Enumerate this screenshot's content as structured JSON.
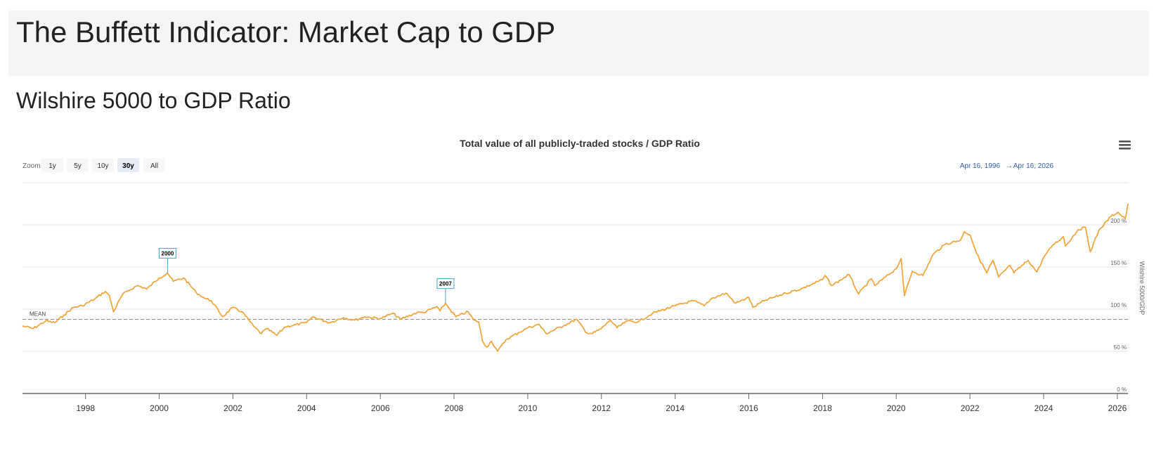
{
  "page": {
    "title": "The Buffett Indicator: Market Cap to GDP",
    "section_title": "Wilshire 5000 to GDP Ratio"
  },
  "chart_data": {
    "type": "line",
    "title": "Total value of all publicly-traded stocks / GDP Ratio",
    "ylabel": "Wilshire 5000/GDP",
    "xlabel": "",
    "ylim": [
      0,
      250
    ],
    "xlim": [
      "1996-04-16",
      "2026-04-16"
    ],
    "grid": true,
    "series_color": "#f0a742",
    "mean_line_color": "#888888",
    "flag_border_color": "#4ca3dd",
    "accent_text_color": "#335cad",
    "y_ticks": [
      0,
      50,
      100,
      150,
      200
    ],
    "y_tick_labels": [
      "0 %",
      "50 %",
      "100 %",
      "150 %",
      "200 %"
    ],
    "x_ticks": [
      "1998",
      "2000",
      "2002",
      "2004",
      "2006",
      "2008",
      "2010",
      "2012",
      "2014",
      "2016",
      "2018",
      "2020",
      "2022",
      "2024",
      "2026"
    ],
    "mean": {
      "label": "MEAN",
      "value": 88
    },
    "flags": [
      {
        "label": "2000",
        "x": "2000-03-24",
        "y": 143
      },
      {
        "label": "2007",
        "x": "2007-10-09",
        "y": 107
      }
    ],
    "range_selector": {
      "zoom_label": "Zoom",
      "buttons": [
        "1y",
        "5y",
        "10y",
        "30y",
        "All"
      ],
      "selected": "30y"
    },
    "range_display": {
      "from": "Apr 16, 1996",
      "arrow": "→",
      "to": "Apr 16, 2026"
    },
    "menu_icon": "hamburger-menu-icon",
    "series": [
      {
        "values": [
          [
            "1996-04-16",
            80
          ],
          [
            "1996-08-01",
            77
          ],
          [
            "1996-12-01",
            86
          ],
          [
            "1997-03-01",
            84
          ],
          [
            "1997-06-01",
            93
          ],
          [
            "1997-09-01",
            102
          ],
          [
            "1997-12-01",
            104
          ],
          [
            "1998-04-01",
            112
          ],
          [
            "1998-07-15",
            121
          ],
          [
            "1998-08-25",
            116
          ],
          [
            "1998-10-05",
            97
          ],
          [
            "1998-12-31",
            117
          ],
          [
            "1999-03-01",
            122
          ],
          [
            "1999-06-01",
            128
          ],
          [
            "1999-09-01",
            124
          ],
          [
            "1999-12-31",
            137
          ],
          [
            "2000-03-24",
            143
          ],
          [
            "2000-05-20",
            133
          ],
          [
            "2000-09-01",
            137
          ],
          [
            "2000-12-31",
            120
          ],
          [
            "2001-03-25",
            113
          ],
          [
            "2001-06-01",
            110
          ],
          [
            "2001-09-21",
            91
          ],
          [
            "2001-12-31",
            102
          ],
          [
            "2002-04-01",
            97
          ],
          [
            "2002-07-23",
            80
          ],
          [
            "2002-10-09",
            71
          ],
          [
            "2002-12-01",
            77
          ],
          [
            "2003-03-11",
            69
          ],
          [
            "2003-06-01",
            79
          ],
          [
            "2003-12-31",
            84
          ],
          [
            "2004-03-01",
            91
          ],
          [
            "2004-08-13",
            84
          ],
          [
            "2004-12-31",
            90
          ],
          [
            "2005-04-20",
            87
          ],
          [
            "2005-08-01",
            91
          ],
          [
            "2005-12-31",
            89
          ],
          [
            "2006-05-08",
            95
          ],
          [
            "2006-07-18",
            88
          ],
          [
            "2006-12-31",
            96
          ],
          [
            "2007-03-05",
            96
          ],
          [
            "2007-07-16",
            103
          ],
          [
            "2007-08-16",
            98
          ],
          [
            "2007-10-09",
            107
          ],
          [
            "2007-11-26",
            99
          ],
          [
            "2008-01-22",
            91
          ],
          [
            "2008-05-19",
            97
          ],
          [
            "2008-07-15",
            87
          ],
          [
            "2008-09-01",
            85
          ],
          [
            "2008-10-10",
            62
          ],
          [
            "2008-11-20",
            55
          ],
          [
            "2009-01-06",
            62
          ],
          [
            "2009-03-09",
            50
          ],
          [
            "2009-06-01",
            64
          ],
          [
            "2009-10-01",
            72
          ],
          [
            "2010-01-01",
            78
          ],
          [
            "2010-04-23",
            82
          ],
          [
            "2010-07-02",
            71
          ],
          [
            "2010-12-31",
            81
          ],
          [
            "2011-04-29",
            88
          ],
          [
            "2011-08-08",
            72
          ],
          [
            "2011-10-03",
            71
          ],
          [
            "2011-12-31",
            77
          ],
          [
            "2012-03-30",
            87
          ],
          [
            "2012-06-04",
            78
          ],
          [
            "2012-09-14",
            86
          ],
          [
            "2012-12-31",
            85
          ],
          [
            "2013-05-21",
            95
          ],
          [
            "2013-12-31",
            104
          ],
          [
            "2014-06-30",
            110
          ],
          [
            "2014-10-15",
            104
          ],
          [
            "2014-12-31",
            113
          ],
          [
            "2015-05-20",
            119
          ],
          [
            "2015-08-24",
            107
          ],
          [
            "2015-12-31",
            114
          ],
          [
            "2016-02-11",
            102
          ],
          [
            "2016-06-01",
            110
          ],
          [
            "2016-12-31",
            119
          ],
          [
            "2017-06-01",
            124
          ],
          [
            "2017-12-31",
            135
          ],
          [
            "2018-01-26",
            140
          ],
          [
            "2018-04-02",
            128
          ],
          [
            "2018-09-20",
            141
          ],
          [
            "2018-12-24",
            118
          ],
          [
            "2019-04-30",
            136
          ],
          [
            "2019-06-03",
            128
          ],
          [
            "2019-12-31",
            148
          ],
          [
            "2020-02-19",
            160
          ],
          [
            "2020-03-23",
            116
          ],
          [
            "2020-06-08",
            145
          ],
          [
            "2020-09-23",
            140
          ],
          [
            "2020-12-31",
            165
          ],
          [
            "2021-05-01",
            177
          ],
          [
            "2021-09-30",
            182
          ],
          [
            "2021-11-08",
            192
          ],
          [
            "2022-01-03",
            188
          ],
          [
            "2022-03-08",
            166
          ],
          [
            "2022-06-16",
            143
          ],
          [
            "2022-08-16",
            158
          ],
          [
            "2022-10-12",
            138
          ],
          [
            "2023-02-02",
            152
          ],
          [
            "2023-03-13",
            143
          ],
          [
            "2023-07-31",
            158
          ],
          [
            "2023-10-27",
            144
          ],
          [
            "2023-12-31",
            161
          ],
          [
            "2024-03-31",
            176
          ],
          [
            "2024-07-16",
            186
          ],
          [
            "2024-08-05",
            175
          ],
          [
            "2024-12-06",
            194
          ],
          [
            "2025-02-19",
            197
          ],
          [
            "2025-04-08",
            168
          ],
          [
            "2025-06-30",
            193
          ],
          [
            "2025-10-28",
            210
          ],
          [
            "2026-01-05",
            215
          ],
          [
            "2026-03-20",
            207
          ],
          [
            "2026-04-16",
            225
          ]
        ]
      }
    ]
  }
}
